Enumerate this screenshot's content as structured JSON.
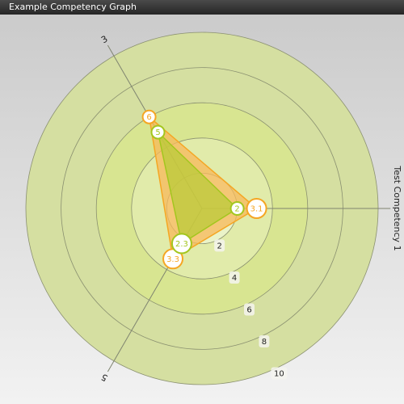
{
  "window": {
    "title": "Example Competency Graph"
  },
  "colors": {
    "ring_outer": "#d5dfa1",
    "ring_mid": "#d8e591",
    "ring_inner": "#e1ebaa",
    "ring_core": "#eaf3c8",
    "ring_stroke": "#8a9070",
    "axis": "#7f8470",
    "orange": "#f5a623",
    "orange_fill": "#f7b85a",
    "green": "#a3c61e",
    "green_fill": "#b7cc34",
    "tick_bg": "#f4f4ee",
    "tick_text": "#222222"
  },
  "chart_data": {
    "type": "radar",
    "title": "",
    "axes": [
      {
        "label": "Test Competency 1",
        "angle_deg": 0
      },
      {
        "label": "5",
        "angle_deg": 120
      },
      {
        "label": "3",
        "angle_deg": 240
      }
    ],
    "rlim": [
      0,
      10
    ],
    "rings": [
      2,
      4,
      6,
      8,
      10
    ],
    "tick_labels": [
      "2",
      "4",
      "6",
      "8",
      "10"
    ],
    "series": [
      {
        "color": "orange",
        "values": [
          3.1,
          3.3,
          6
        ],
        "value_labels": [
          "3.1",
          "3.3",
          "6"
        ]
      },
      {
        "color": "green",
        "values": [
          2,
          2.3,
          5
        ],
        "value_labels": [
          "2",
          "2.3",
          "5"
        ]
      }
    ]
  }
}
